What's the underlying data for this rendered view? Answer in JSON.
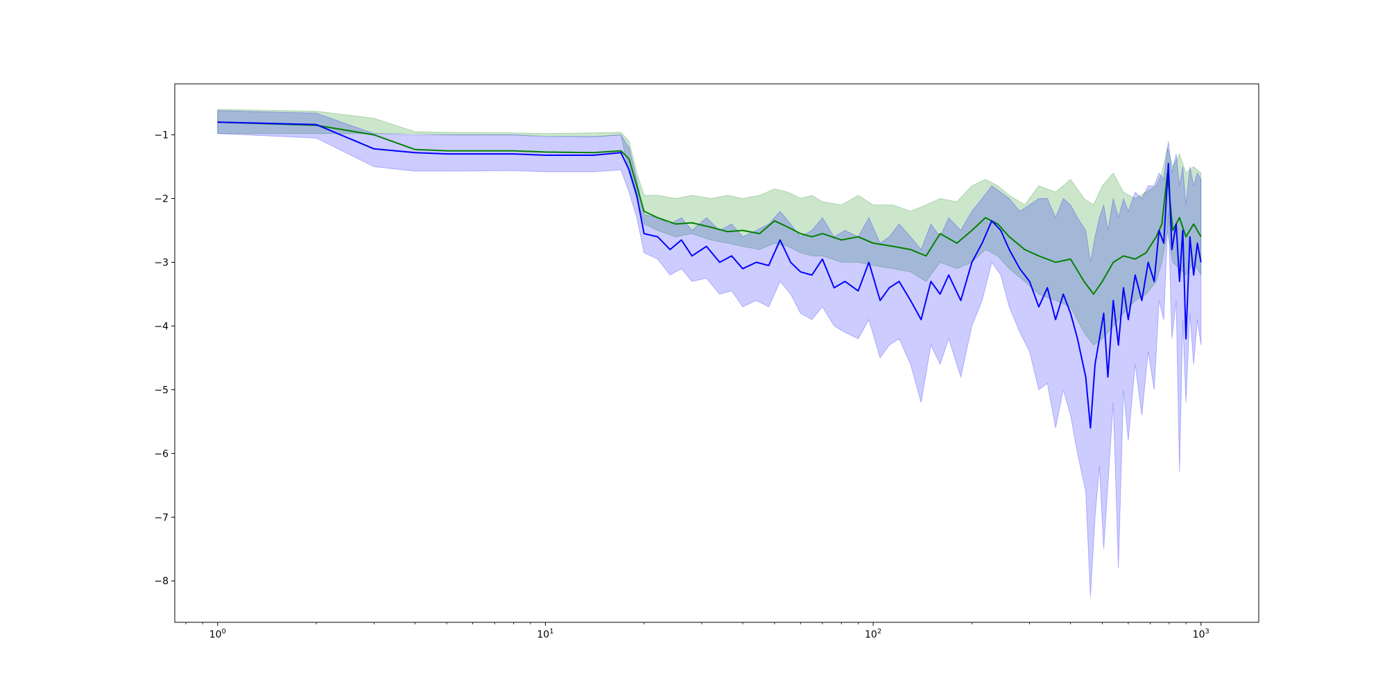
{
  "chart_data": {
    "type": "line",
    "title": "",
    "xlabel": "",
    "ylabel": "",
    "xscale": "log",
    "xlim": [
      0.74,
      1500
    ],
    "ylim": [
      -8.65,
      -0.2
    ],
    "grid": false,
    "legend": "none",
    "x_ticks": [
      {
        "value": 1,
        "base": "10",
        "exp": "0"
      },
      {
        "value": 10,
        "base": "10",
        "exp": "1"
      },
      {
        "value": 100,
        "base": "10",
        "exp": "2"
      },
      {
        "value": 1000,
        "base": "10",
        "exp": "3"
      }
    ],
    "y_ticks": [
      {
        "value": -1,
        "label": "−1"
      },
      {
        "value": -2,
        "label": "−2"
      },
      {
        "value": -3,
        "label": "−3"
      },
      {
        "value": -4,
        "label": "−4"
      },
      {
        "value": -5,
        "label": "−5"
      },
      {
        "value": -6,
        "label": "−6"
      },
      {
        "value": -7,
        "label": "−7"
      },
      {
        "value": -8,
        "label": "−8"
      }
    ],
    "series": [
      {
        "color": "#008000",
        "band_color": "#008000",
        "band_opacity": 0.2,
        "points": [
          [
            1,
            -0.8,
            -0.6,
            -0.98
          ],
          [
            2,
            -0.85,
            -0.63,
            -0.98
          ],
          [
            3,
            -1.0,
            -0.74,
            -0.98
          ],
          [
            4,
            -1.23,
            -0.95,
            -0.98
          ],
          [
            5,
            -1.25,
            -0.96,
            -1.0
          ],
          [
            8,
            -1.25,
            -0.97,
            -1.0
          ],
          [
            10,
            -1.27,
            -0.98,
            -1.02
          ],
          [
            14,
            -1.28,
            -0.97,
            -1.03
          ],
          [
            17,
            -1.25,
            -0.96,
            -1.0
          ],
          [
            18,
            -1.38,
            -1.1,
            -1.6
          ],
          [
            19,
            -1.8,
            -1.6,
            -2.0
          ],
          [
            20,
            -2.2,
            -1.95,
            -2.4
          ],
          [
            22,
            -2.3,
            -1.95,
            -2.5
          ],
          [
            25,
            -2.4,
            -2.0,
            -2.6
          ],
          [
            28,
            -2.38,
            -1.95,
            -2.55
          ],
          [
            32,
            -2.45,
            -2.0,
            -2.65
          ],
          [
            36,
            -2.52,
            -1.95,
            -2.7
          ],
          [
            40,
            -2.5,
            -2.0,
            -2.75
          ],
          [
            45,
            -2.55,
            -1.95,
            -2.8
          ],
          [
            50,
            -2.35,
            -1.85,
            -2.7
          ],
          [
            55,
            -2.45,
            -1.9,
            -2.75
          ],
          [
            60,
            -2.55,
            -2.0,
            -2.85
          ],
          [
            65,
            -2.6,
            -1.95,
            -2.9
          ],
          [
            70,
            -2.55,
            -2.05,
            -2.9
          ],
          [
            80,
            -2.65,
            -2.1,
            -3.0
          ],
          [
            90,
            -2.6,
            -1.95,
            -3.0
          ],
          [
            100,
            -2.7,
            -2.1,
            -3.05
          ],
          [
            115,
            -2.75,
            -2.1,
            -3.1
          ],
          [
            130,
            -2.8,
            -2.2,
            -3.15
          ],
          [
            145,
            -2.9,
            -2.1,
            -3.3
          ],
          [
            160,
            -2.55,
            -2.0,
            -3.0
          ],
          [
            180,
            -2.7,
            -2.05,
            -3.1
          ],
          [
            200,
            -2.5,
            -1.8,
            -3.0
          ],
          [
            220,
            -2.3,
            -1.7,
            -2.8
          ],
          [
            240,
            -2.4,
            -1.8,
            -2.9
          ],
          [
            260,
            -2.6,
            -1.95,
            -3.1
          ],
          [
            290,
            -2.8,
            -2.1,
            -3.3
          ],
          [
            320,
            -2.9,
            -1.8,
            -3.5
          ],
          [
            360,
            -3.0,
            -1.9,
            -3.6
          ],
          [
            400,
            -2.95,
            -1.7,
            -3.7
          ],
          [
            440,
            -3.3,
            -2.0,
            -4.1
          ],
          [
            470,
            -3.5,
            -2.1,
            -4.3
          ],
          [
            500,
            -3.3,
            -1.8,
            -4.2
          ],
          [
            540,
            -3.0,
            -1.6,
            -4.0
          ],
          [
            580,
            -2.9,
            -1.9,
            -3.8
          ],
          [
            630,
            -2.95,
            -2.0,
            -3.6
          ],
          [
            680,
            -2.85,
            -1.9,
            -3.5
          ],
          [
            730,
            -2.6,
            -1.8,
            -3.3
          ],
          [
            760,
            -2.4,
            -1.6,
            -3.0
          ],
          [
            790,
            -1.6,
            -1.2,
            -2.5
          ],
          [
            820,
            -2.5,
            -1.5,
            -3.0
          ],
          [
            860,
            -2.3,
            -1.3,
            -3.1
          ],
          [
            900,
            -2.6,
            -1.6,
            -3.2
          ],
          [
            950,
            -2.4,
            -1.5,
            -3.0
          ],
          [
            1000,
            -2.6,
            -1.6,
            -3.2
          ]
        ]
      },
      {
        "color": "#0000ff",
        "band_color": "#0000ff",
        "band_opacity": 0.2,
        "points": [
          [
            1,
            -0.8,
            -0.62,
            -0.98
          ],
          [
            2,
            -0.84,
            -0.66,
            -1.05
          ],
          [
            3,
            -1.22,
            -0.98,
            -1.5
          ],
          [
            4,
            -1.28,
            -1.0,
            -1.57
          ],
          [
            5,
            -1.3,
            -1.0,
            -1.57
          ],
          [
            8,
            -1.3,
            -1.0,
            -1.56
          ],
          [
            10,
            -1.32,
            -1.03,
            -1.58
          ],
          [
            14,
            -1.32,
            -1.03,
            -1.58
          ],
          [
            17,
            -1.28,
            -1.0,
            -1.55
          ],
          [
            18,
            -1.55,
            -1.2,
            -1.9
          ],
          [
            19,
            -1.95,
            -1.7,
            -2.3
          ],
          [
            20,
            -2.55,
            -2.25,
            -2.85
          ],
          [
            22,
            -2.6,
            -2.3,
            -2.95
          ],
          [
            24,
            -2.8,
            -2.4,
            -3.2
          ],
          [
            26,
            -2.65,
            -2.3,
            -3.1
          ],
          [
            28,
            -2.9,
            -2.5,
            -3.3
          ],
          [
            31,
            -2.75,
            -2.3,
            -3.25
          ],
          [
            34,
            -3.0,
            -2.5,
            -3.5
          ],
          [
            37,
            -2.9,
            -2.4,
            -3.45
          ],
          [
            40,
            -3.1,
            -2.6,
            -3.7
          ],
          [
            44,
            -3.0,
            -2.5,
            -3.6
          ],
          [
            48,
            -3.05,
            -2.4,
            -3.7
          ],
          [
            52,
            -2.65,
            -2.2,
            -3.3
          ],
          [
            56,
            -3.0,
            -2.4,
            -3.5
          ],
          [
            60,
            -3.15,
            -2.6,
            -3.8
          ],
          [
            65,
            -3.2,
            -2.5,
            -3.9
          ],
          [
            70,
            -2.95,
            -2.3,
            -3.7
          ],
          [
            76,
            -3.4,
            -2.6,
            -4.0
          ],
          [
            82,
            -3.3,
            -2.5,
            -4.1
          ],
          [
            90,
            -3.45,
            -2.6,
            -4.2
          ],
          [
            97,
            -3.0,
            -2.3,
            -3.9
          ],
          [
            105,
            -3.6,
            -2.7,
            -4.5
          ],
          [
            112,
            -3.4,
            -2.6,
            -4.3
          ],
          [
            120,
            -3.3,
            -2.4,
            -4.2
          ],
          [
            130,
            -3.6,
            -2.6,
            -4.6
          ],
          [
            140,
            -3.9,
            -2.8,
            -5.2
          ],
          [
            150,
            -3.3,
            -2.4,
            -4.3
          ],
          [
            160,
            -3.5,
            -2.6,
            -4.6
          ],
          [
            170,
            -3.2,
            -2.3,
            -4.2
          ],
          [
            185,
            -3.6,
            -2.5,
            -4.8
          ],
          [
            200,
            -3.0,
            -2.2,
            -4.0
          ],
          [
            215,
            -2.7,
            -2.0,
            -3.6
          ],
          [
            230,
            -2.35,
            -1.8,
            -3.0
          ],
          [
            245,
            -2.5,
            -1.9,
            -3.2
          ],
          [
            260,
            -2.8,
            -2.0,
            -3.7
          ],
          [
            280,
            -3.1,
            -2.2,
            -4.1
          ],
          [
            300,
            -3.3,
            -2.1,
            -4.4
          ],
          [
            320,
            -3.7,
            -2.0,
            -5.0
          ],
          [
            340,
            -3.4,
            -2.0,
            -4.9
          ],
          [
            360,
            -3.9,
            -2.3,
            -5.6
          ],
          [
            380,
            -3.5,
            -2.0,
            -5.0
          ],
          [
            400,
            -3.8,
            -2.1,
            -5.4
          ],
          [
            420,
            -4.2,
            -2.3,
            -6.0
          ],
          [
            445,
            -4.8,
            -2.5,
            -6.6
          ],
          [
            460,
            -5.6,
            -3.0,
            -8.25
          ],
          [
            475,
            -4.6,
            -2.6,
            -7.0
          ],
          [
            490,
            -4.2,
            -2.3,
            -6.2
          ],
          [
            505,
            -3.8,
            -2.1,
            -7.5
          ],
          [
            520,
            -4.8,
            -2.5,
            -6.5
          ],
          [
            540,
            -3.6,
            -2.0,
            -5.2
          ],
          [
            560,
            -4.3,
            -2.3,
            -7.8
          ],
          [
            580,
            -3.4,
            -2.0,
            -5.0
          ],
          [
            600,
            -3.9,
            -2.2,
            -5.8
          ],
          [
            630,
            -3.2,
            -1.9,
            -4.6
          ],
          [
            660,
            -3.6,
            -2.0,
            -5.4
          ],
          [
            690,
            -3.0,
            -1.8,
            -4.4
          ],
          [
            720,
            -3.3,
            -1.8,
            -5.0
          ],
          [
            745,
            -2.5,
            -1.6,
            -3.6
          ],
          [
            770,
            -2.7,
            -1.7,
            -3.9
          ],
          [
            795,
            -1.45,
            -1.1,
            -2.2
          ],
          [
            815,
            -2.8,
            -1.6,
            -4.2
          ],
          [
            840,
            -2.4,
            -1.3,
            -3.6
          ],
          [
            860,
            -3.3,
            -1.8,
            -6.3
          ],
          [
            880,
            -2.5,
            -1.5,
            -3.9
          ],
          [
            900,
            -4.2,
            -2.1,
            -5.2
          ],
          [
            925,
            -2.6,
            -1.5,
            -3.8
          ],
          [
            950,
            -3.2,
            -1.8,
            -4.6
          ],
          [
            975,
            -2.7,
            -1.6,
            -3.9
          ],
          [
            1000,
            -3.0,
            -1.7,
            -4.3
          ]
        ]
      }
    ]
  }
}
